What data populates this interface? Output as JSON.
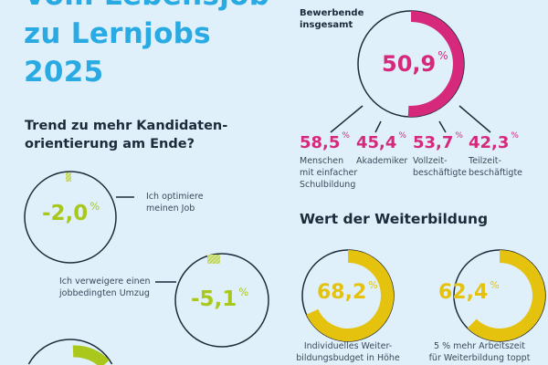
{
  "title": {
    "line1": "Vom Lebensjob",
    "line2": "zu Lernjobs",
    "line3": "2025"
  },
  "colors": {
    "background": "#dff0fb",
    "title": "#2aaae2",
    "green": "#a9c81b",
    "pink": "#d6297c",
    "yellow": "#e5c20d",
    "dark": "#1d2a3a"
  },
  "trend": {
    "heading_line1": "Trend zu mehr Kandidaten-",
    "heading_line2": "orientierung am Ende?",
    "items": [
      {
        "value": "-2,0",
        "unit": "%",
        "label_line1": "Ich optimiere",
        "label_line2": "meinen Job",
        "fraction": 0.02
      },
      {
        "value": "-5,1",
        "unit": "%",
        "label_line1": "Ich verweigere einen",
        "label_line2": "jobbedingten Umzug",
        "fraction": 0.051
      }
    ]
  },
  "applicants": {
    "heading_line1": "Bewerbende",
    "heading_line2": "insgesamt",
    "total": {
      "value": "50,9",
      "unit": "%",
      "fraction": 0.509
    },
    "groups": [
      {
        "value": "58,5",
        "unit": "%",
        "label_line1": "Menschen",
        "label_line2": "mit einfacher",
        "label_line3": "Schulbildung"
      },
      {
        "value": "45,4",
        "unit": "%",
        "label_line1": "Akademiker",
        "label_line2": "",
        "label_line3": ""
      },
      {
        "value": "53,7",
        "unit": "%",
        "label_line1": "Vollzeit-",
        "label_line2": "beschäftigte",
        "label_line3": ""
      },
      {
        "value": "42,3",
        "unit": "%",
        "label_line1": "Teilzeit-",
        "label_line2": "beschäftigte",
        "label_line3": ""
      }
    ]
  },
  "education": {
    "heading": "Wert der Weiterbildung",
    "items": [
      {
        "value": "68,2",
        "unit": "%",
        "label_line1": "Individuelles Weiter-",
        "label_line2": "bildungsbudget in Höhe",
        "fraction": 0.682
      },
      {
        "value": "62,4",
        "unit": "%",
        "label_line1": "5 % mehr Arbeitszeit",
        "label_line2": "für Weiterbildung toppt",
        "fraction": 0.624
      }
    ]
  }
}
